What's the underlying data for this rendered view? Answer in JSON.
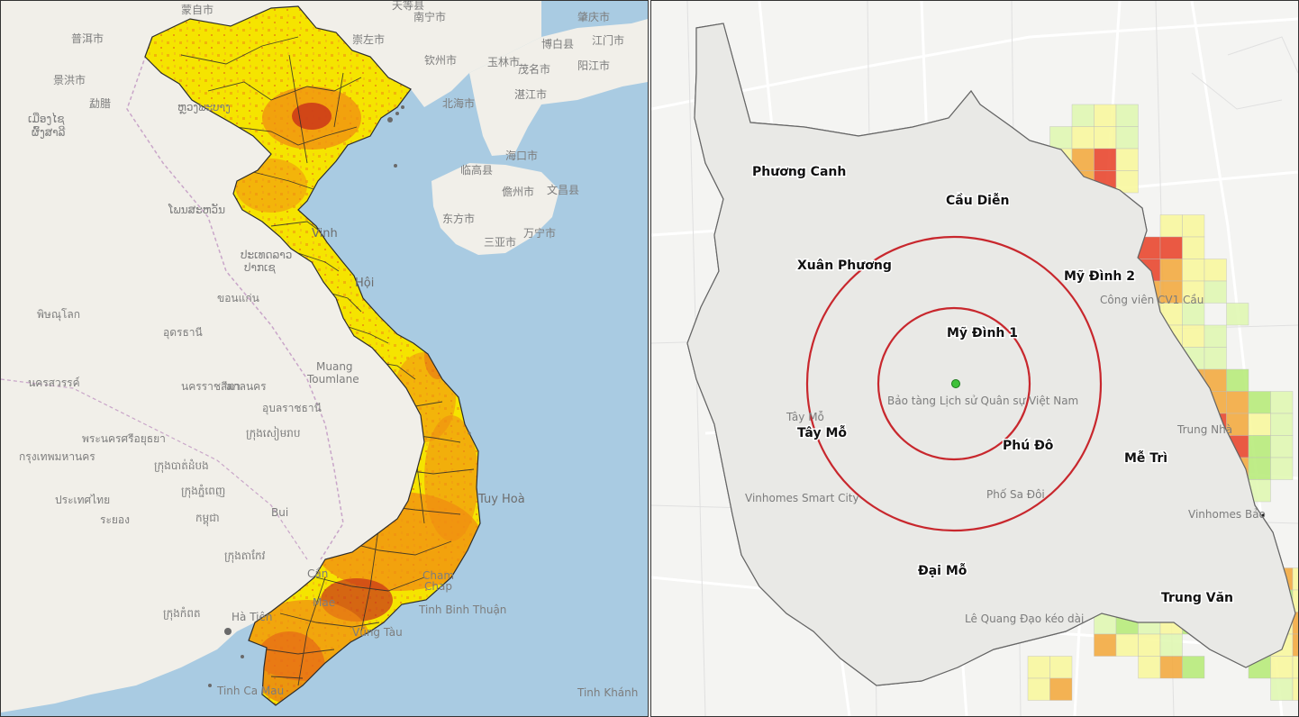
{
  "left_map": {
    "labels": [
      {
        "text": "蒙自市"
      },
      {
        "text": "普洱市"
      },
      {
        "text": "景洪市"
      },
      {
        "text": "勐腊"
      },
      {
        "text": "南宁市"
      },
      {
        "text": "崇左市"
      },
      {
        "text": "钦州市"
      },
      {
        "text": "玉林市"
      },
      {
        "text": "肇庆市"
      },
      {
        "text": "江门市"
      },
      {
        "text": "阳江市"
      },
      {
        "text": "茂名市"
      },
      {
        "text": "湛江市"
      },
      {
        "text": "北海市"
      },
      {
        "text": "海口市"
      },
      {
        "text": "儋州市"
      },
      {
        "text": "文昌县"
      },
      {
        "text": "三亚市"
      },
      {
        "text": "东方市"
      },
      {
        "text": "万宁市"
      },
      {
        "text": "临高县"
      },
      {
        "text": "博白县"
      },
      {
        "text": "天等县"
      },
      {
        "text": "ເມືອງໄຊ"
      },
      {
        "text": "ຜົ້ງສາລີ"
      },
      {
        "text": "ຫຼວງພະບາງ"
      },
      {
        "text": "ໂພນສະຫວັນ"
      },
      {
        "text": "ປາກເຊ"
      },
      {
        "text": "ປະເທດລາວ"
      },
      {
        "text": "พิษณุโลก"
      },
      {
        "text": "ขอนแก่น"
      },
      {
        "text": "อุดรธานี"
      },
      {
        "text": "สกลนคร"
      },
      {
        "text": "นครสวรรค์"
      },
      {
        "text": "อุบลราชธานี"
      },
      {
        "text": "กรุงเทพมหานคร"
      },
      {
        "text": "ประเทศไทย"
      },
      {
        "text": "ระยอง"
      },
      {
        "text": "พระนครศรีอยุธยา"
      },
      {
        "text": "นครราชสีมา"
      },
      {
        "text": "ក្រុងសៀមរាប"
      },
      {
        "text": "ក្រុងបាត់ដំបង"
      },
      {
        "text": "ក្រុងភ្នំពេញ"
      },
      {
        "text": "កម្ពុជា"
      },
      {
        "text": "ក្រុងតាកែវ"
      },
      {
        "text": "ក្រុងកំពត"
      },
      {
        "text": "Muang Toumlane"
      },
      {
        "text": "Vinh"
      },
      {
        "text": "Hội"
      },
      {
        "text": "Tuy Hoà"
      },
      {
        "text": "Cham"
      },
      {
        "text": "Chap"
      },
      {
        "text": "Tinh Binh Thuận"
      },
      {
        "text": "Tinh Khánh"
      },
      {
        "text": "Tinh Ca Mau"
      },
      {
        "text": "Vũng Tàu"
      },
      {
        "text": "Hà Tiên"
      },
      {
        "text": "Bui"
      },
      {
        "text": "Cần"
      },
      {
        "text": "Mae"
      }
    ],
    "colors": {
      "sea": "#a9cbe2",
      "land": "#f1efe9",
      "choropleth_low": "#f5e400",
      "choropleth_mid": "#f08c12",
      "choropleth_high": "#c8301a",
      "boundary": "#2c2c2c"
    }
  },
  "right_map": {
    "wards": [
      {
        "name": "Phương Canh"
      },
      {
        "name": "Cầu Diễn"
      },
      {
        "name": "Xuân Phương"
      },
      {
        "name": "Mỹ Đình 2"
      },
      {
        "name": "Mỹ Đình 1"
      },
      {
        "name": "Tây Mỗ"
      },
      {
        "name": "Phú Đô"
      },
      {
        "name": "Mễ Trì"
      },
      {
        "name": "Đại Mỗ"
      },
      {
        "name": "Trung Văn"
      }
    ],
    "background_labels": [
      {
        "text": "Bảo tàng Lịch sử Quân sự Việt Nam"
      },
      {
        "text": "Vinhomes Smart City"
      },
      {
        "text": "Công viên CV1 Cầu"
      },
      {
        "text": "Trung Nhà"
      },
      {
        "text": "Phố Sa Đôi"
      },
      {
        "text": "Lê Quang Đạo kéo dài"
      },
      {
        "text": "Tây Mỗ"
      },
      {
        "text": "Vinhomes Bảo"
      }
    ],
    "colors": {
      "ring": "#c8272d",
      "site_point": "#3fc13a",
      "grid_low": "#dff7b0",
      "grid_green": "#b6ea78",
      "grid_yellow": "#f8f79c",
      "grid_orange": "#f3a83c",
      "grid_red": "#e8432a",
      "boundary": "#111111"
    },
    "site_point": {
      "shape": "circle",
      "color": "#3fc13a"
    }
  }
}
